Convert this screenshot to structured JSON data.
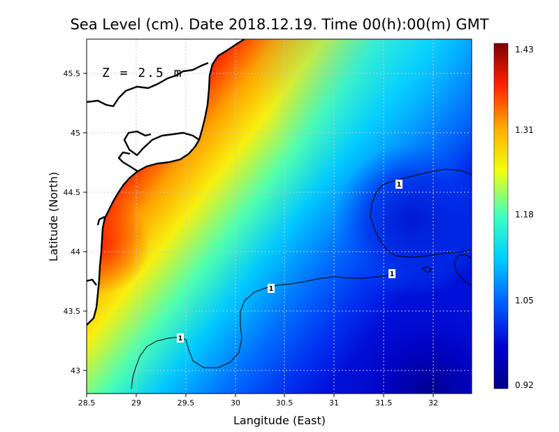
{
  "title": "Sea Level (cm). Date 2018.12.19. Time 00(h):00(m) GMT",
  "depth_label": "Z = 2.5 m",
  "x_axis": {
    "label": "Langitude (East)",
    "range": [
      28.5,
      32.4
    ],
    "ticks": [
      "28.5",
      "29",
      "29.5",
      "30",
      "30.5",
      "31",
      "31.5",
      "32"
    ]
  },
  "y_axis": {
    "label": "Latitude (North)",
    "range": [
      42.8,
      45.8
    ],
    "ticks": [
      "43",
      "43.5",
      "44",
      "44.5",
      "45",
      "45.5"
    ]
  },
  "colorbar": {
    "min": 0.92,
    "max": 1.43,
    "tick_labels": [
      "1.43",
      "1.31",
      "1.18",
      "1.05",
      "0.92"
    ],
    "colors": [
      "#7f0000",
      "#ff2000",
      "#ffb000",
      "#f0ff10",
      "#40ffc0",
      "#00d0ff",
      "#0060ff",
      "#0000d0",
      "#00008a"
    ]
  },
  "contour_labels": [
    "1",
    "1",
    "1",
    "1"
  ]
}
